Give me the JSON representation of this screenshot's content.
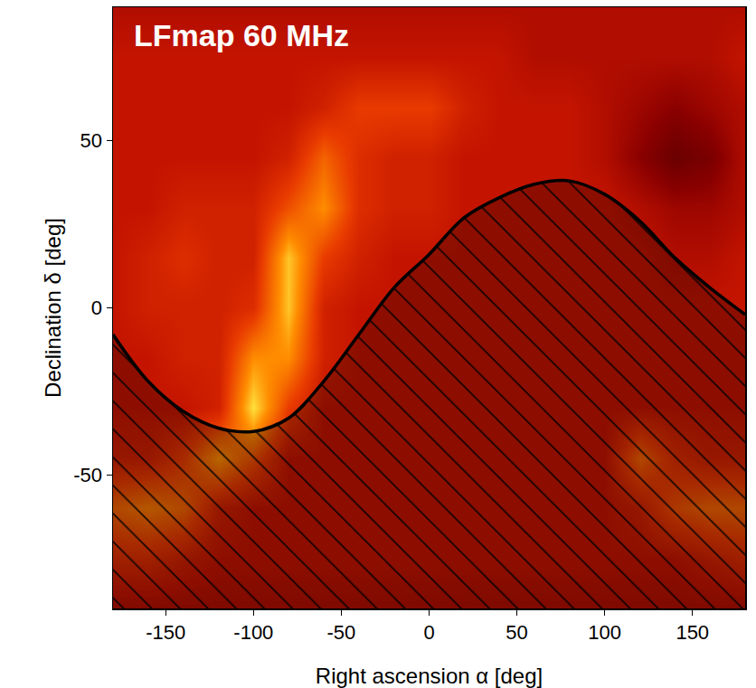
{
  "chart_data": {
    "type": "heatmap",
    "title": "LFmap 60 MHz",
    "x_label": "Right ascension α [deg]",
    "y_label": "Declination δ [deg]",
    "x": [
      -180,
      -160,
      -140,
      -120,
      -100,
      -80,
      -60,
      -40,
      -20,
      0,
      20,
      40,
      60,
      80,
      100,
      120,
      140,
      160,
      180
    ],
    "y": [
      -90,
      -75,
      -60,
      -45,
      -30,
      -15,
      0,
      15,
      30,
      45,
      60,
      75,
      90
    ],
    "z": [
      [
        4,
        4,
        4,
        4,
        4,
        4,
        4,
        4,
        4,
        4,
        4,
        4,
        4,
        4,
        4,
        4,
        4,
        4,
        4
      ],
      [
        5.5,
        5.5,
        5,
        4.5,
        4.5,
        4.5,
        4.5,
        4.5,
        4.5,
        4.5,
        4.5,
        4.5,
        4.5,
        4.5,
        4.5,
        4.5,
        4.5,
        5,
        5.5
      ],
      [
        7,
        7.5,
        7,
        5,
        4.5,
        4.5,
        4.5,
        4.5,
        4.5,
        4.5,
        4.5,
        4.5,
        4.5,
        4.5,
        4.5,
        5,
        6.5,
        7,
        7
      ],
      [
        5,
        5,
        6,
        8,
        6.5,
        4.5,
        4.5,
        4.5,
        4.5,
        4.5,
        4.5,
        4.5,
        4.5,
        4.5,
        4.5,
        7,
        5.5,
        5,
        5
      ],
      [
        4.5,
        4.5,
        4.5,
        5,
        9.5,
        6,
        4.5,
        4.5,
        4.5,
        4.5,
        4.5,
        4.5,
        4.5,
        4.5,
        4.5,
        4.5,
        4.5,
        4.5,
        4.5
      ],
      [
        4.5,
        4.5,
        5,
        5,
        8,
        8,
        5,
        4.5,
        4.5,
        4.5,
        4.5,
        4.5,
        4.5,
        4.5,
        4.5,
        4.5,
        4.5,
        4.5,
        4.5
      ],
      [
        4.5,
        5,
        5,
        5,
        5.5,
        9,
        5,
        4.5,
        4.5,
        4.5,
        4.5,
        4.5,
        4.5,
        4.5,
        4.5,
        4.5,
        4.5,
        4.5,
        4.5
      ],
      [
        4.5,
        5,
        5.5,
        5,
        5,
        9,
        6,
        5,
        4.5,
        4.5,
        4.5,
        4.5,
        4.5,
        4.5,
        4.5,
        4.5,
        4,
        4,
        4.5
      ],
      [
        4.5,
        4.5,
        5,
        5,
        5,
        6.5,
        8,
        5.5,
        5,
        5,
        4.5,
        4.5,
        4.5,
        4.5,
        4.5,
        4,
        3.5,
        3.5,
        4
      ],
      [
        4.5,
        4.5,
        4.5,
        4.5,
        4.5,
        5,
        7,
        5.5,
        5,
        5,
        4.5,
        4.5,
        4.5,
        4.5,
        4,
        3,
        2,
        2.5,
        4
      ],
      [
        4.5,
        4.5,
        4.5,
        4.5,
        4.5,
        4.5,
        5,
        6,
        6,
        6,
        5,
        4.5,
        4.5,
        4.5,
        4,
        3.5,
        3,
        3.5,
        4
      ],
      [
        4.5,
        4.5,
        4.5,
        4.5,
        4.5,
        4.5,
        4.5,
        4.5,
        4.5,
        4.5,
        4.5,
        4.5,
        4,
        4,
        4,
        4,
        4,
        4,
        4.5
      ],
      [
        4,
        4,
        4,
        4,
        4,
        4,
        4,
        4,
        4,
        4,
        4,
        4,
        4,
        4,
        4,
        4,
        4,
        4,
        4
      ]
    ],
    "zlim": [
      0,
      10
    ],
    "horizon": {
      "ra": [
        -180,
        -160,
        -140,
        -120,
        -100,
        -80,
        -60,
        -40,
        -20,
        0,
        20,
        40,
        60,
        80,
        100,
        120,
        140,
        160,
        180
      ],
      "dec": [
        -8,
        -22,
        -31,
        -36,
        -37,
        -33,
        -22,
        -8,
        6,
        16,
        27,
        33,
        37,
        38,
        34,
        26,
        15,
        6,
        -2
      ]
    },
    "xlim": [
      -180,
      180
    ],
    "ylim": [
      -90,
      90
    ],
    "xticks": [
      -150,
      -100,
      -50,
      0,
      50,
      100,
      150
    ],
    "yticks": [
      -50,
      0,
      50
    ],
    "grid": false
  }
}
